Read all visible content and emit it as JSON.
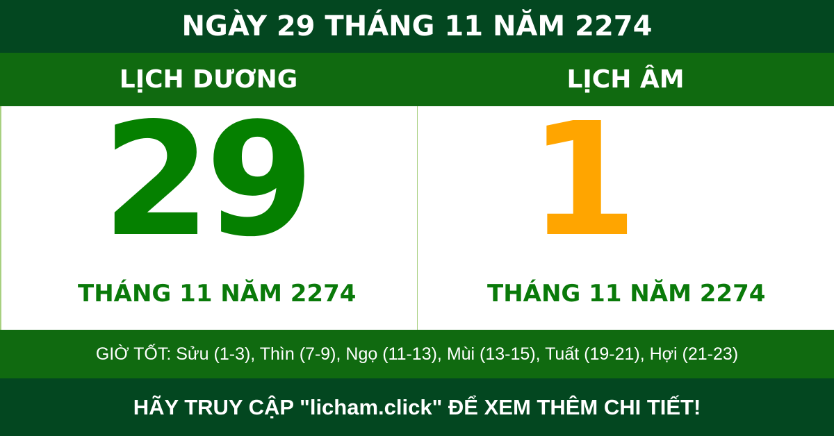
{
  "header": {
    "title": "NGÀY 29 THÁNG 11 NĂM 2274"
  },
  "solar": {
    "label": "LỊCH DƯƠNG",
    "day": "29",
    "month_year": "THÁNG 11 NĂM 2274"
  },
  "lunar": {
    "label": "LỊCH ÂM",
    "day": "1",
    "month_year": "THÁNG 11 NĂM 2274"
  },
  "good_hours": "GIỜ TỐT: Sửu (1-3), Thìn (7-9), Ngọ (11-13), Mùi (13-15), Tuất (19-21), Hợi (21-23)",
  "footer": {
    "cta": "HÃY TRUY CẬP \"licham.click\" ĐỂ XEM THÊM CHI TIẾT!"
  },
  "colors": {
    "dark_green": "#034720",
    "band_green": "#106a10",
    "solar_digit": "#058000",
    "lunar_digit": "#ffa500"
  }
}
